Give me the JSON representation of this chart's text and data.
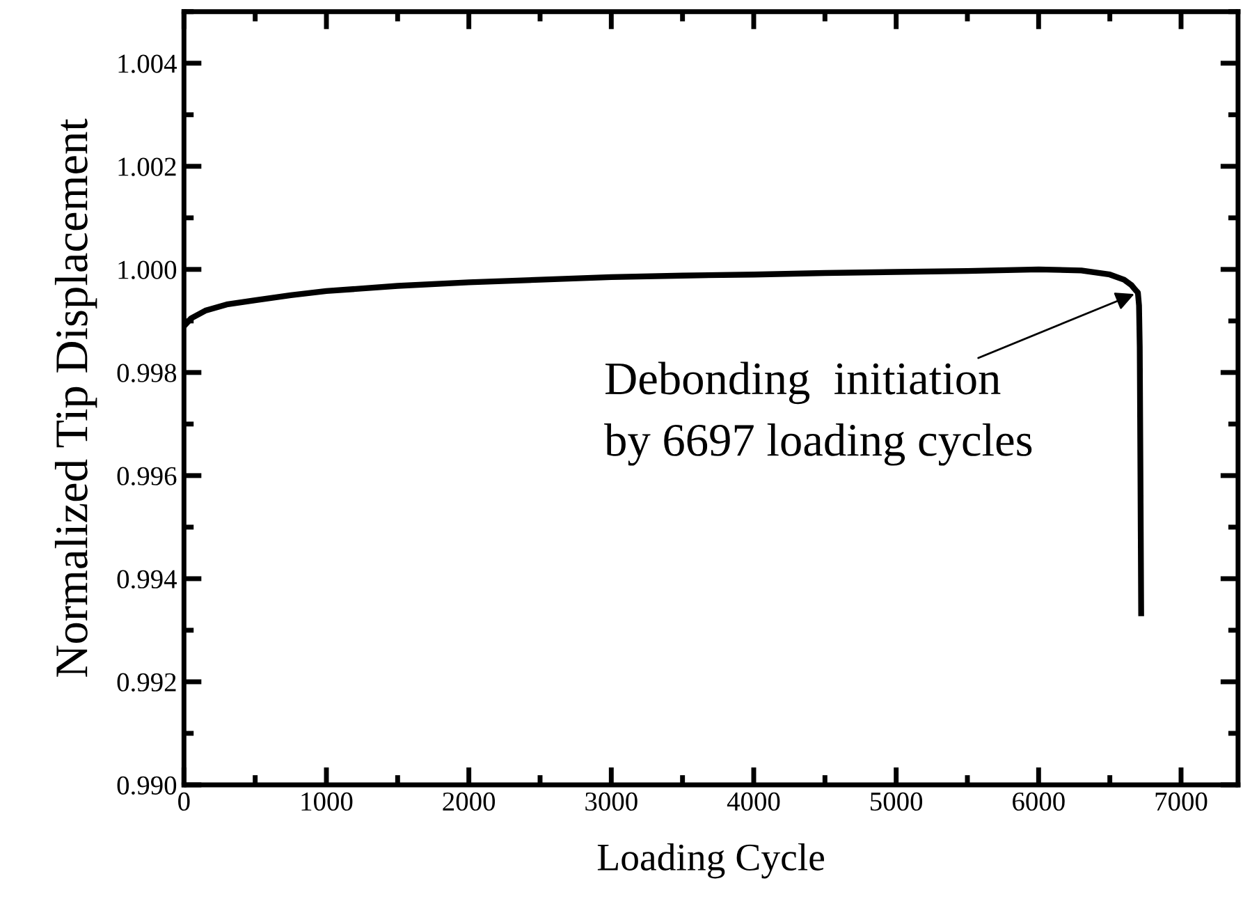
{
  "chart_data": {
    "type": "line",
    "xlabel": "Loading Cycle",
    "ylabel": "Normalized Tip Displacement",
    "series": [
      {
        "color": "#000000",
        "x": [
          0,
          50,
          150,
          300,
          500,
          750,
          1000,
          1500,
          2000,
          2500,
          3000,
          3500,
          4000,
          4500,
          5000,
          5500,
          6000,
          6300,
          6500,
          6600,
          6650,
          6680,
          6697,
          6705,
          6710,
          6715,
          6720
        ],
        "values": [
          0.9989,
          0.99905,
          0.9992,
          0.99932,
          0.9994,
          0.9995,
          0.99958,
          0.99968,
          0.99975,
          0.9998,
          0.99985,
          0.99988,
          0.9999,
          0.99993,
          0.99995,
          0.99997,
          1.0,
          0.99998,
          0.9999,
          0.9998,
          0.9997,
          0.9996,
          0.99955,
          0.9993,
          0.9985,
          0.996,
          0.99333
        ]
      }
    ],
    "xlim": [
      0,
      7400
    ],
    "xticks": [
      0,
      1000,
      2000,
      3000,
      4000,
      5000,
      6000,
      7000
    ],
    "ylim": [
      0.99,
      1.005
    ],
    "yticks": [
      {
        "value": 0.99,
        "label": "0.990"
      },
      {
        "value": 0.992,
        "label": "0.992"
      },
      {
        "value": 0.994,
        "label": "0.994"
      },
      {
        "value": 0.996,
        "label": "0.996"
      },
      {
        "value": 0.998,
        "label": "0.998"
      },
      {
        "value": 1.0,
        "label": "1.000"
      },
      {
        "value": 1.002,
        "label": "1.002"
      },
      {
        "value": 1.004,
        "label": "1.004"
      }
    ],
    "annotations": [
      {
        "text": "Debonding  initiation\nby 6697 loading cycles",
        "x": 6697,
        "y": 0.99955
      }
    ],
    "grid": false,
    "legend": false,
    "marker": "none",
    "line_style": "solid"
  }
}
